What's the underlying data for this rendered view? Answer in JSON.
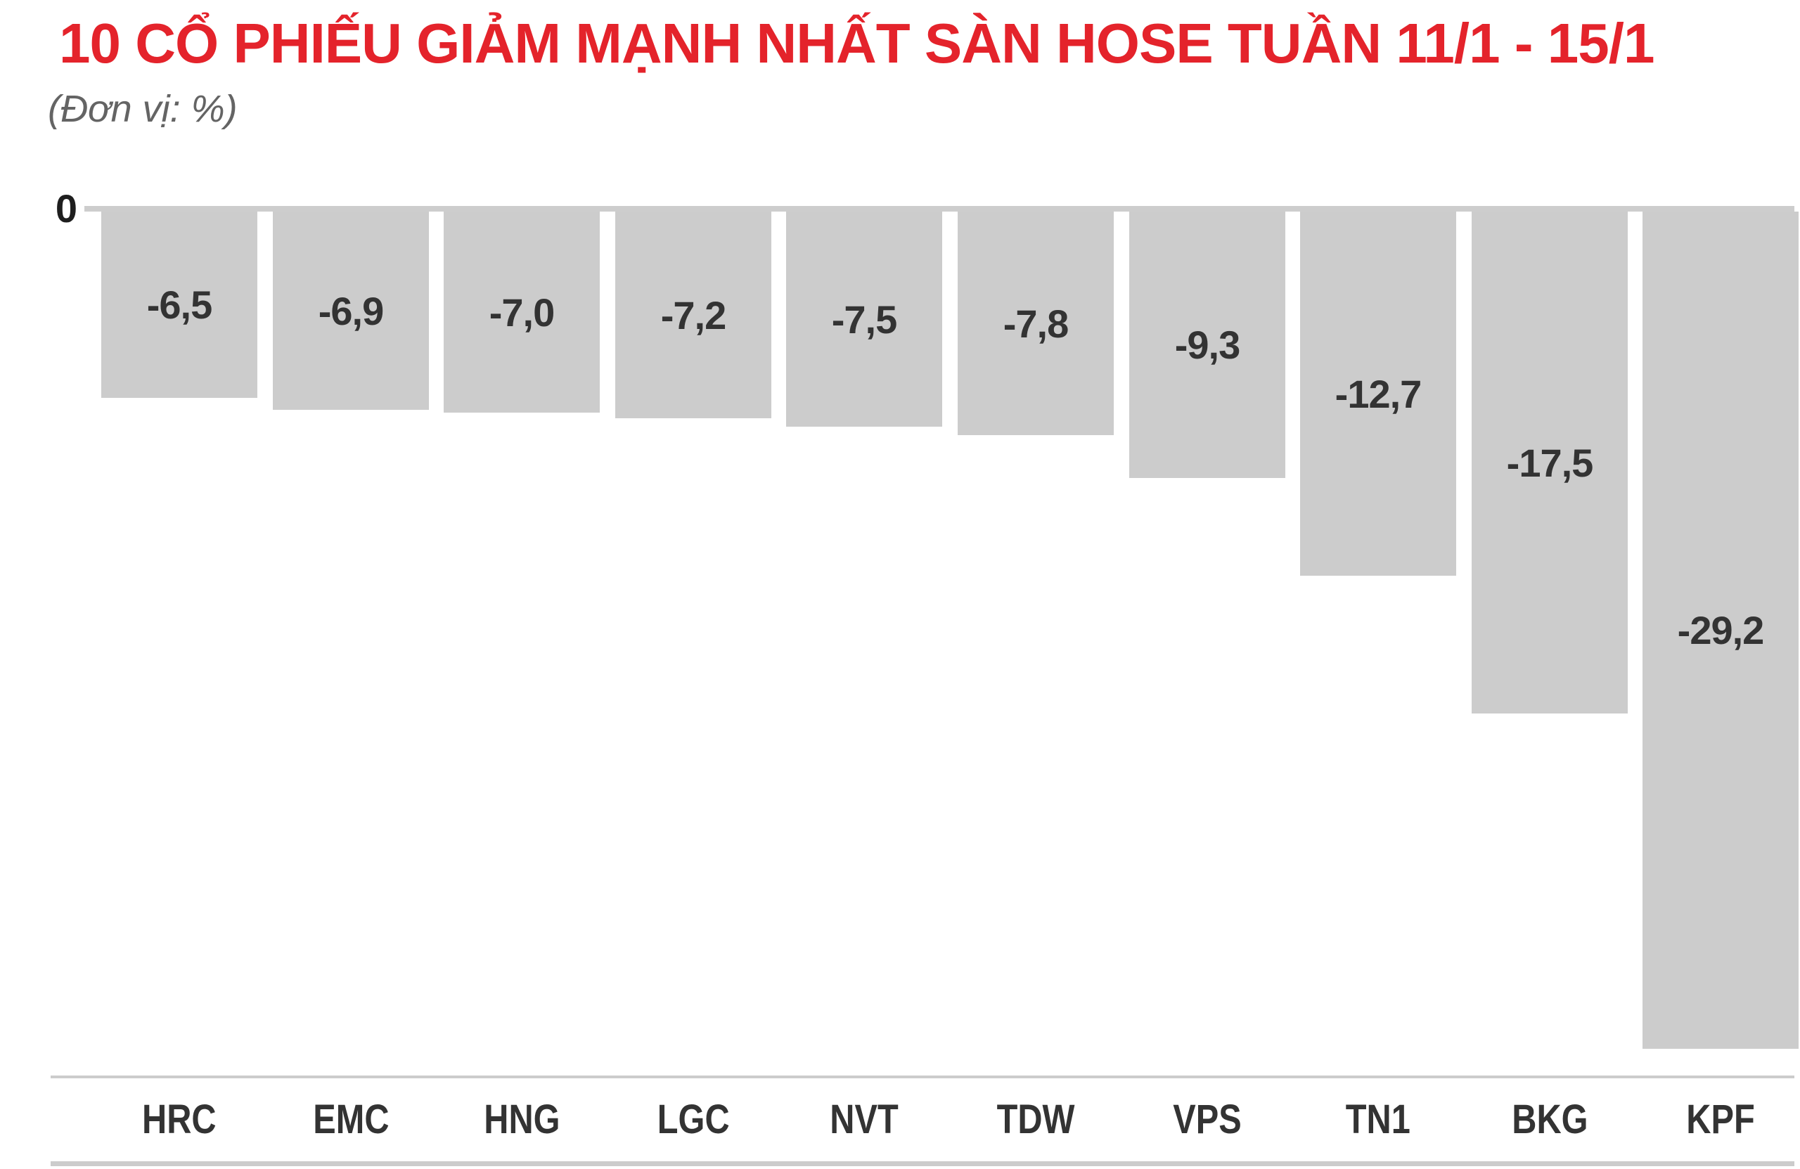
{
  "title": "10 CỔ PHIẾU GIẢM MẠNH NHẤT SÀN HOSE TUẦN 11/1 - 15/1",
  "subtitle": "(Đơn vị: %)",
  "axis": {
    "zero_label": "0"
  },
  "colors": {
    "title_red": "#e4232b",
    "subtitle_gray": "#646464",
    "bar_gray": "#cccccc",
    "axis_line_gray": "#cdcdcd",
    "value_text": "#333333",
    "category_text": "#333333"
  },
  "chart_data": {
    "type": "bar",
    "title": "10 CỔ PHIẾU GIẢM MẠNH NHẤT SÀN HOSE TUẦN 11/1 - 15/1",
    "unit": "%",
    "categories": [
      "HRC",
      "EMC",
      "HNG",
      "LGC",
      "NVT",
      "TDW",
      "VPS",
      "TN1",
      "BKG",
      "KPF"
    ],
    "values": [
      -6.5,
      -6.9,
      -7.0,
      -7.2,
      -7.5,
      -7.8,
      -9.3,
      -12.7,
      -17.5,
      -29.2
    ],
    "value_labels": [
      "-6,5",
      "-6,9",
      "-7,0",
      "-7,2",
      "-7,5",
      "-7,8",
      "-9,3",
      "-12,7",
      "-17,5",
      "-29,2"
    ],
    "xlabel": "",
    "ylabel": "%",
    "ylim": [
      -30,
      0
    ],
    "grid": false,
    "legend": false,
    "bar_color": "#cccccc",
    "value_label_position": "inside-center"
  }
}
